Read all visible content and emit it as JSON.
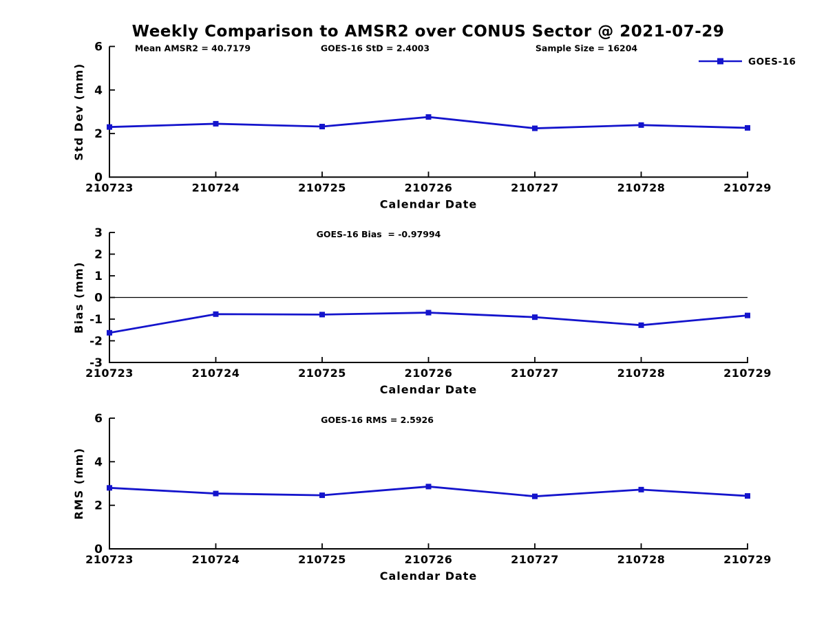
{
  "title": "Weekly Comparison to AMSR2 over CONUS Sector @ 2021-07-29",
  "colors": {
    "series_blue": "#1414CC",
    "axis_black": "#000000",
    "background": "#FFFFFF"
  },
  "legend": {
    "label": "GOES-16",
    "position": "top-right",
    "marker": "filled-square",
    "line_color": "#1414CC"
  },
  "chart_data": [
    {
      "type": "line",
      "id": "std-dev-panel",
      "annotations": [
        "Mean AMSR2 = 40.7179",
        "GOES-16 StD = 2.4003",
        "Sample Size = 16204"
      ],
      "categories": [
        "210723",
        "210724",
        "210725",
        "210726",
        "210727",
        "210728",
        "210729"
      ],
      "series": [
        {
          "name": "GOES-16",
          "values": [
            2.3,
            2.45,
            2.32,
            2.76,
            2.24,
            2.39,
            2.26
          ]
        }
      ],
      "xlabel": "Calendar Date",
      "ylabel": "Std Dev (mm)",
      "ylim": [
        0,
        6
      ],
      "yticks": [
        0,
        2,
        4,
        6
      ],
      "grid": false,
      "zero_line": false,
      "show_legend": true
    },
    {
      "type": "line",
      "id": "bias-panel",
      "annotations": [
        "GOES-16 Bias  = -0.97994"
      ],
      "categories": [
        "210723",
        "210724",
        "210725",
        "210726",
        "210727",
        "210728",
        "210729"
      ],
      "series": [
        {
          "name": "GOES-16",
          "values": [
            -1.63,
            -0.77,
            -0.79,
            -0.7,
            -0.91,
            -1.28,
            -0.83
          ]
        }
      ],
      "xlabel": "Calendar Date",
      "ylabel": "Bias (mm)",
      "ylim": [
        -3,
        3
      ],
      "yticks": [
        -3,
        -2,
        -1,
        0,
        1,
        2,
        3
      ],
      "grid": false,
      "zero_line": true,
      "show_legend": false
    },
    {
      "type": "line",
      "id": "rms-panel",
      "annotations": [
        "GOES-16 RMS = 2.5926"
      ],
      "categories": [
        "210723",
        "210724",
        "210725",
        "210726",
        "210727",
        "210728",
        "210729"
      ],
      "series": [
        {
          "name": "GOES-16",
          "values": [
            2.8,
            2.54,
            2.46,
            2.86,
            2.41,
            2.72,
            2.43
          ]
        }
      ],
      "xlabel": "Calendar Date",
      "ylabel": "RMS (mm)",
      "ylim": [
        0,
        6
      ],
      "yticks": [
        0,
        2,
        4,
        6
      ],
      "grid": false,
      "zero_line": false,
      "show_legend": false
    }
  ]
}
